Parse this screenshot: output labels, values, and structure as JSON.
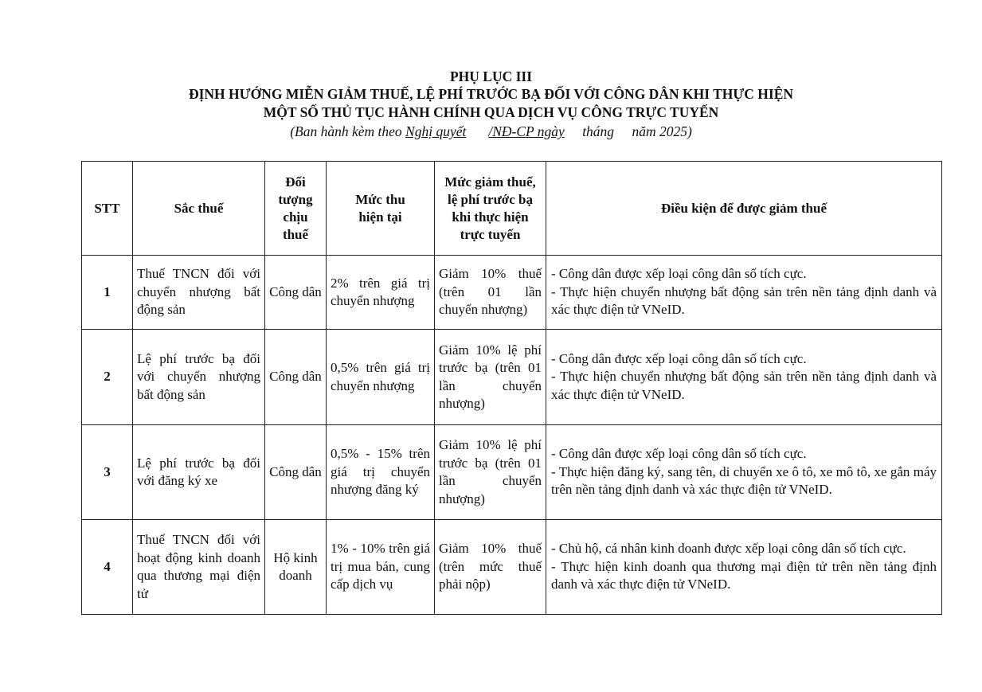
{
  "header": {
    "appendix": "PHỤ LỤC III",
    "title_line1": "ĐỊNH HƯỚNG MIỄN GIẢM THUẾ, LỆ PHÍ TRƯỚC BẠ ĐỐI VỚI CÔNG DÂN KHI THỰC HIỆN",
    "title_line2": "MỘT SỐ THỦ TỤC HÀNH CHÍNH QUA DỊCH VỤ CÔNG TRỰC TUYẾN",
    "sub_prefix": "(Ban hành kèm theo ",
    "sub_resolution": "Nghị quyết",
    "sub_code": "/NĐ-CP ngày",
    "sub_month": "tháng",
    "sub_year": "năm 2025)"
  },
  "table": {
    "columns": [
      "STT",
      "Sắc thuế",
      "Đối tượng chịu thuế",
      "Mức thu hiện tại",
      "Mức giảm thuế, lệ phí trước bạ khi thực hiện trực tuyến",
      "Điều kiện để được giảm thuế"
    ],
    "rows": [
      {
        "stt": "1",
        "tax": "Thuế TNCN đối với chuyển nhượng bất động sản",
        "subject": "Công dân",
        "rate": "2% trên giá trị chuyển nhượng",
        "reduction": "Giảm 10% thuế (trên 01 lần chuyển nhượng)",
        "conditions": [
          "- Công dân được xếp loại công dân số tích cực.",
          "- Thực hiện chuyển nhượng bất động sản trên nền tảng định danh và xác thực điện tử VNeID."
        ]
      },
      {
        "stt": "2",
        "tax": "Lệ phí trước bạ đối với chuyển nhượng bất động sản",
        "subject": "Công dân",
        "rate": "0,5% trên giá trị chuyển nhượng",
        "reduction": "Giảm 10% lệ phí trước bạ (trên 01 lần chuyển nhượng)",
        "conditions": [
          "- Công dân được xếp loại công dân số tích cực.",
          "- Thực hiện chuyển nhượng bất động sản trên nền tảng định danh và xác thực điện tử VNeID."
        ]
      },
      {
        "stt": "3",
        "tax": "Lệ phí trước bạ đối với đăng ký xe",
        "subject": "Công dân",
        "rate": "0,5% - 15% trên giá trị chuyển nhượng đăng ký",
        "reduction": "Giảm 10% lệ phí trước bạ (trên 01 lần chuyển nhượng)",
        "conditions": [
          "- Công dân được xếp loại công dân số tích cực.",
          "- Thực hiện đăng ký, sang tên, di chuyển xe ô tô, xe mô tô, xe gắn máy trên nền tảng định danh và xác thực điện tử VNeID."
        ]
      },
      {
        "stt": "4",
        "tax": "Thuế TNCN đối với hoạt động kinh doanh qua thương mại điện tử",
        "subject": "Hộ kinh doanh",
        "rate": "1% - 10% trên giá trị mua bán, cung cấp dịch vụ",
        "reduction": "Giảm 10% thuế (trên mức thuế phải nộp)",
        "conditions": [
          "- Chủ hộ, cá nhân kinh doanh được xếp loại công dân số tích cực.",
          "- Thực hiện kinh doanh qua thương mại điện tử trên nền tảng định danh và xác thực điện tử VNeID."
        ]
      }
    ]
  }
}
